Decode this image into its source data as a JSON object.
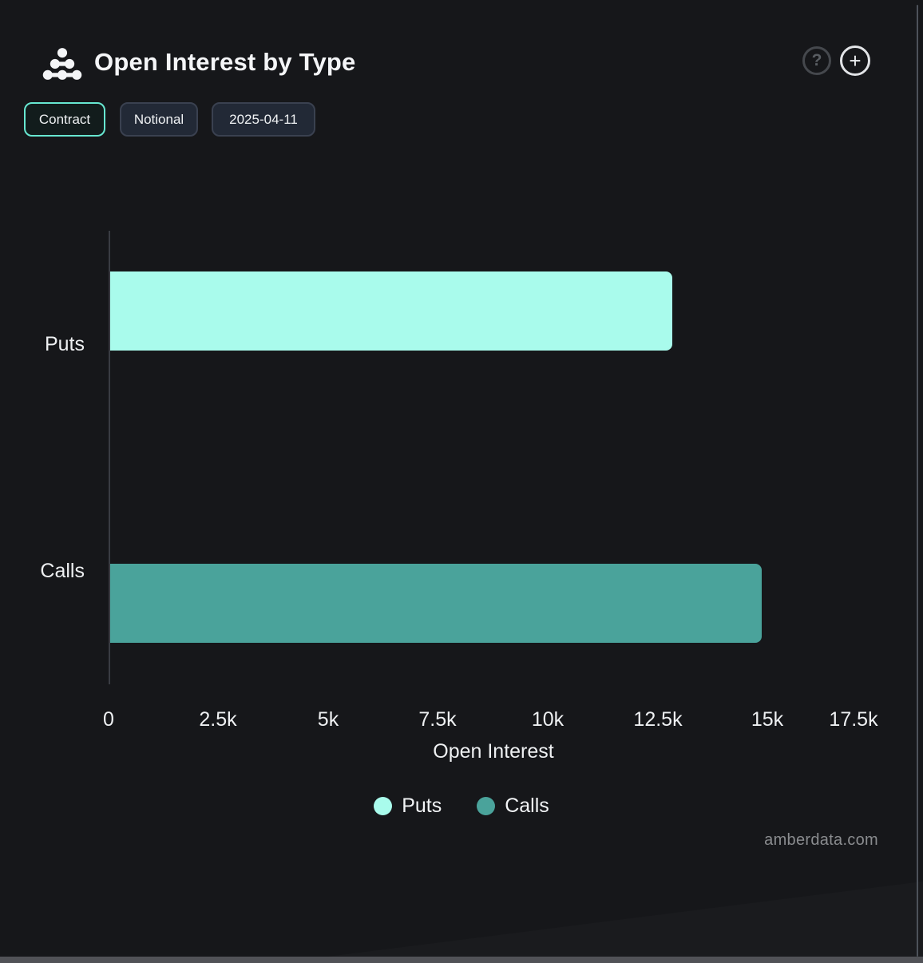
{
  "header": {
    "title": "Open Interest by Type",
    "help_glyph": "?",
    "add_glyph": "+"
  },
  "toolbar": {
    "buttons": [
      {
        "label": "Contract",
        "active": true
      },
      {
        "label": "Notional",
        "active": false
      },
      {
        "label": "2025-04-11",
        "active": false
      }
    ]
  },
  "chart_data": {
    "type": "bar",
    "orientation": "horizontal",
    "title": "Open Interest by Type",
    "categories": [
      "Puts",
      "Calls"
    ],
    "series": [
      {
        "name": "Puts",
        "color": "#a9fbec",
        "values": [
          12800,
          0
        ]
      },
      {
        "name": "Calls",
        "color": "#4aa39b",
        "values": [
          0,
          14850
        ]
      }
    ],
    "xlabel": "Open Interest",
    "ylabel": "",
    "xlim": [
      0,
      17500
    ],
    "x_ticks": [
      "0",
      "2.5k",
      "5k",
      "7.5k",
      "10k",
      "12.5k",
      "15k",
      "17.5k"
    ],
    "x_tick_values": [
      0,
      2500,
      5000,
      7500,
      10000,
      12500,
      15000,
      17500
    ],
    "grid": false,
    "legend_position": "bottom",
    "legend": [
      {
        "label": "Puts",
        "color": "#a9fbec"
      },
      {
        "label": "Calls",
        "color": "#4aa39b"
      }
    ]
  },
  "watermark": "amberdata.com",
  "colors": {
    "background": "#16171a",
    "puts_bar": "#a9fbec",
    "calls_bar": "#4aa39b",
    "active_chip_border": "#67e7d1",
    "axis_line": "#393c42",
    "text": "#eef0f2",
    "watermark_text": "#8a8c8f"
  }
}
